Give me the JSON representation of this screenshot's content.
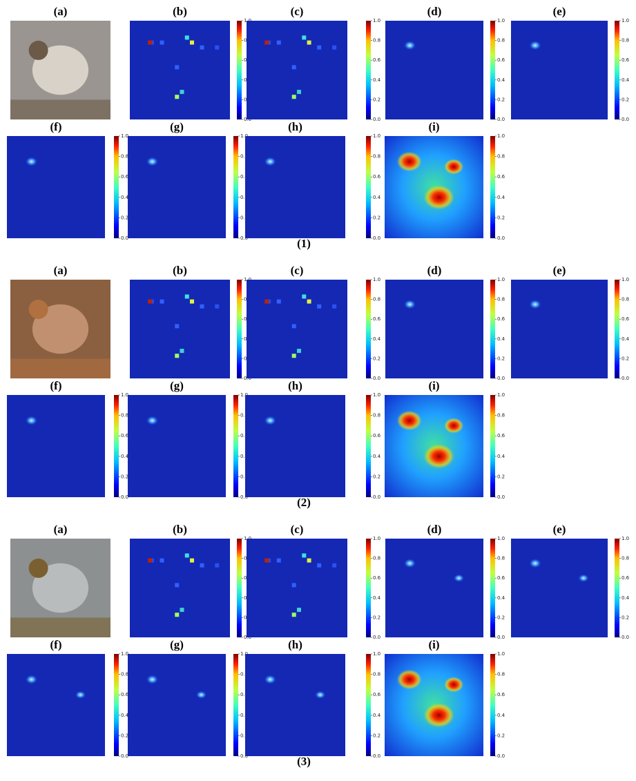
{
  "figure": {
    "groups": [
      {
        "label": "(1)",
        "panels": [
          "(a)",
          "(b)",
          "(c)",
          "(d)",
          "(e)",
          "(f)",
          "(g)",
          "(h)",
          "(i)"
        ]
      },
      {
        "label": "(2)",
        "panels": [
          "(a)",
          "(b)",
          "(c)",
          "(d)",
          "(e)",
          "(f)",
          "(g)",
          "(h)",
          "(i)"
        ]
      },
      {
        "label": "(3)",
        "panels": [
          "(a)",
          "(b)",
          "(c)",
          "(d)",
          "(e)",
          "(f)",
          "(g)",
          "(h)",
          "(i)"
        ]
      }
    ],
    "colorbar_ticks": [
      "0.0",
      "0.2",
      "0.4",
      "0.6",
      "0.8",
      "1.0"
    ]
  }
}
